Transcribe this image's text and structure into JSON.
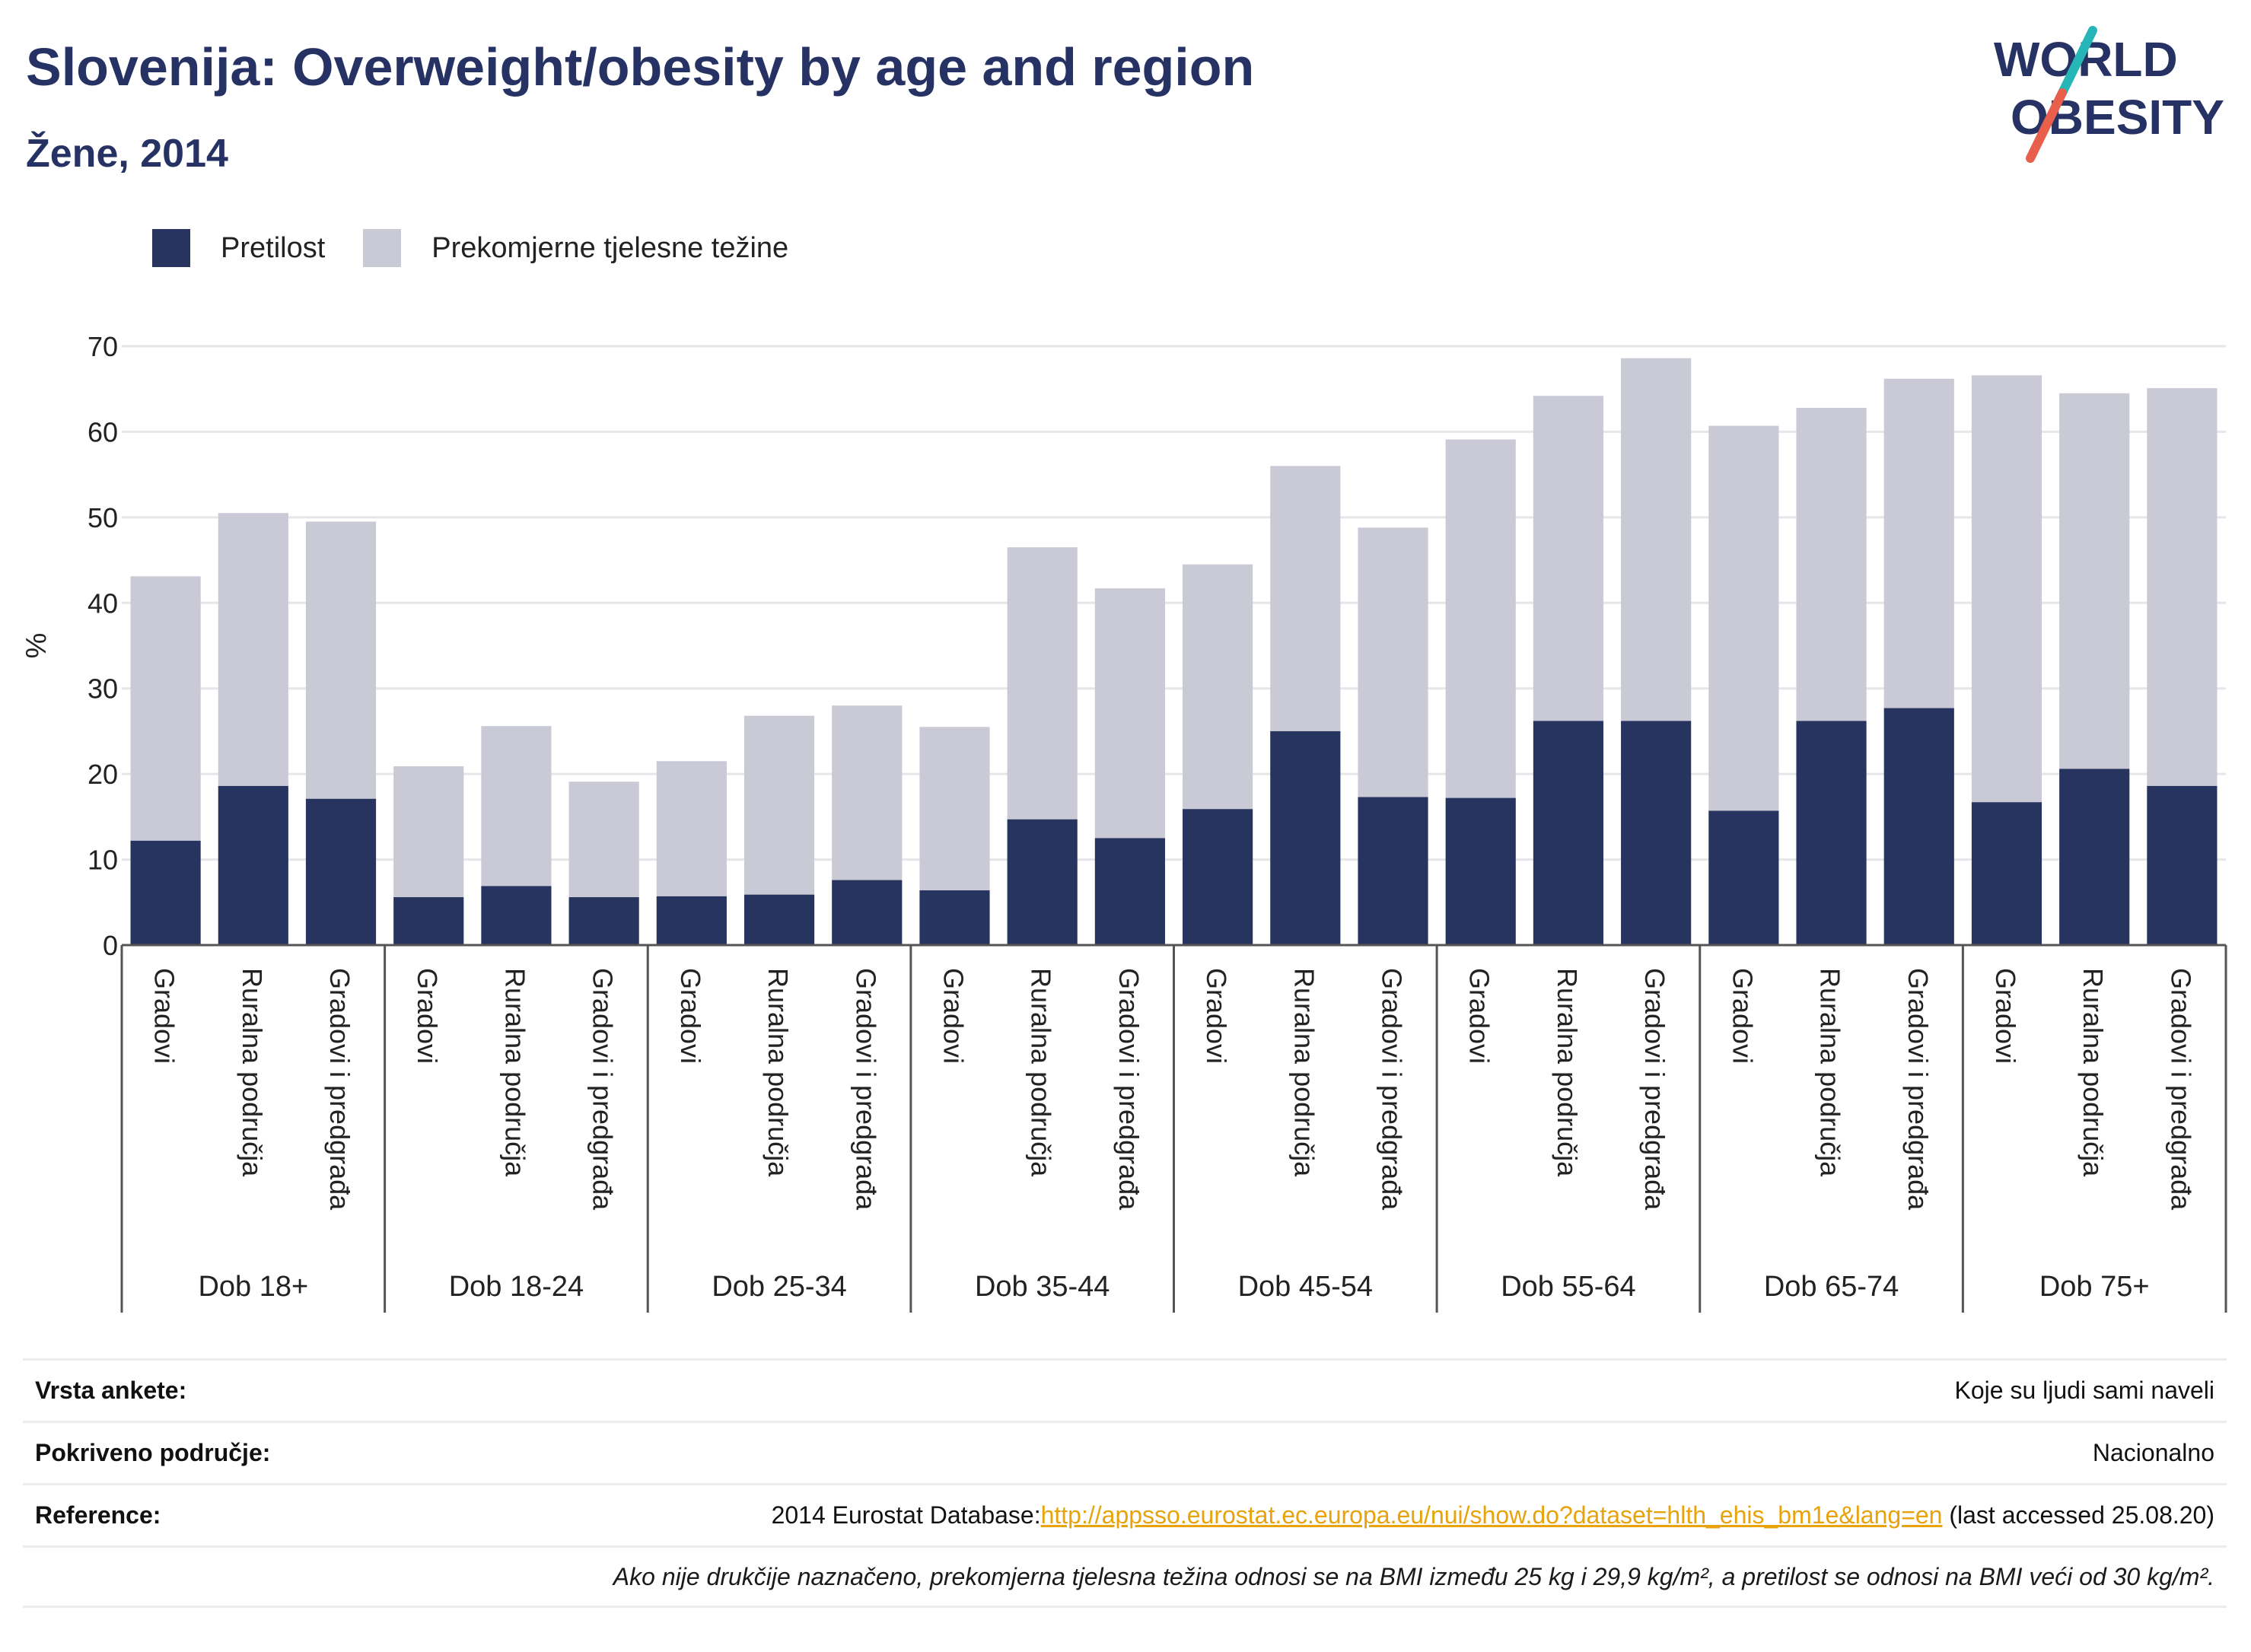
{
  "header": {
    "title": "Slovenija: Overweight/obesity by age and region",
    "subtitle": "Žene, 2014"
  },
  "logo": {
    "line1": "WORLD",
    "line2": "OBESITY",
    "slash_colors": [
      "#27b6b7",
      "#e8604c"
    ],
    "text_color": "#263264"
  },
  "legend": {
    "items": [
      {
        "label": "Pretilost",
        "color": "#27345f"
      },
      {
        "label": "Prekomjerne tjelesne težine",
        "color": "#c9cad6"
      }
    ]
  },
  "chart_data": {
    "type": "bar",
    "stacked": true,
    "ylabel": "%",
    "ylim": [
      0,
      70
    ],
    "yticks": [
      0,
      10,
      20,
      30,
      40,
      50,
      60,
      70
    ],
    "grid": true,
    "legend_position": "top-left",
    "groups": [
      {
        "label": "Dob 18+",
        "categories": [
          "Gradovi",
          "Ruralna područja",
          "Gradovi i predgrađa"
        ]
      },
      {
        "label": "Dob 18-24",
        "categories": [
          "Gradovi",
          "Ruralna područja",
          "Gradovi i predgrađa"
        ]
      },
      {
        "label": "Dob 25-34",
        "categories": [
          "Gradovi",
          "Ruralna područja",
          "Gradovi i predgrađa"
        ]
      },
      {
        "label": "Dob 35-44",
        "categories": [
          "Gradovi",
          "Ruralna područja",
          "Gradovi i predgrađa"
        ]
      },
      {
        "label": "Dob 45-54",
        "categories": [
          "Gradovi",
          "Ruralna područja",
          "Gradovi i predgrađa"
        ]
      },
      {
        "label": "Dob 55-64",
        "categories": [
          "Gradovi",
          "Ruralna područja",
          "Gradovi i predgrađa"
        ]
      },
      {
        "label": "Dob 65-74",
        "categories": [
          "Gradovi",
          "Ruralna područja",
          "Gradovi i predgrađa"
        ]
      },
      {
        "label": "Dob 75+",
        "categories": [
          "Gradovi",
          "Ruralna područja",
          "Gradovi i predgrađa"
        ]
      }
    ],
    "series": [
      {
        "name": "Pretilost",
        "color": "#27345f",
        "values": [
          12.2,
          18.6,
          17.1,
          5.6,
          6.9,
          5.6,
          5.7,
          5.9,
          7.6,
          6.4,
          14.7,
          12.5,
          15.9,
          25.0,
          17.3,
          17.2,
          26.2,
          26.2,
          15.7,
          26.2,
          27.7,
          16.7,
          20.6,
          18.6
        ]
      },
      {
        "name": "Prekomjerne tjelesne težine",
        "color": "#c9cad6",
        "values": [
          30.9,
          31.9,
          32.4,
          15.3,
          18.7,
          13.5,
          15.8,
          20.9,
          20.4,
          19.1,
          31.8,
          29.2,
          28.6,
          31.0,
          31.5,
          41.9,
          38.0,
          42.4,
          45.0,
          36.6,
          38.5,
          49.9,
          43.9,
          46.5
        ]
      }
    ]
  },
  "footer": {
    "rows": [
      {
        "label": "Vrsta ankete:",
        "value": "Koje su ljudi sami naveli"
      },
      {
        "label": "Pokriveno područje:",
        "value": "Nacionalno"
      },
      {
        "label": "Reference:",
        "value_prefix": "2014 Eurostat Database:",
        "link": "http://appsso.eurostat.ec.europa.eu/nui/show.do?dataset=hlth_ehis_bm1e&lang=en",
        "value_suffix": " (last accessed 25.08.20)"
      }
    ],
    "note": "Ako nije drukčije naznačeno, prekomjerna tjelesna težina odnosi se na BMI između 25 kg i 29,9 kg/m², a pretilost se odnosi na BMI veći od 30 kg/m²."
  }
}
